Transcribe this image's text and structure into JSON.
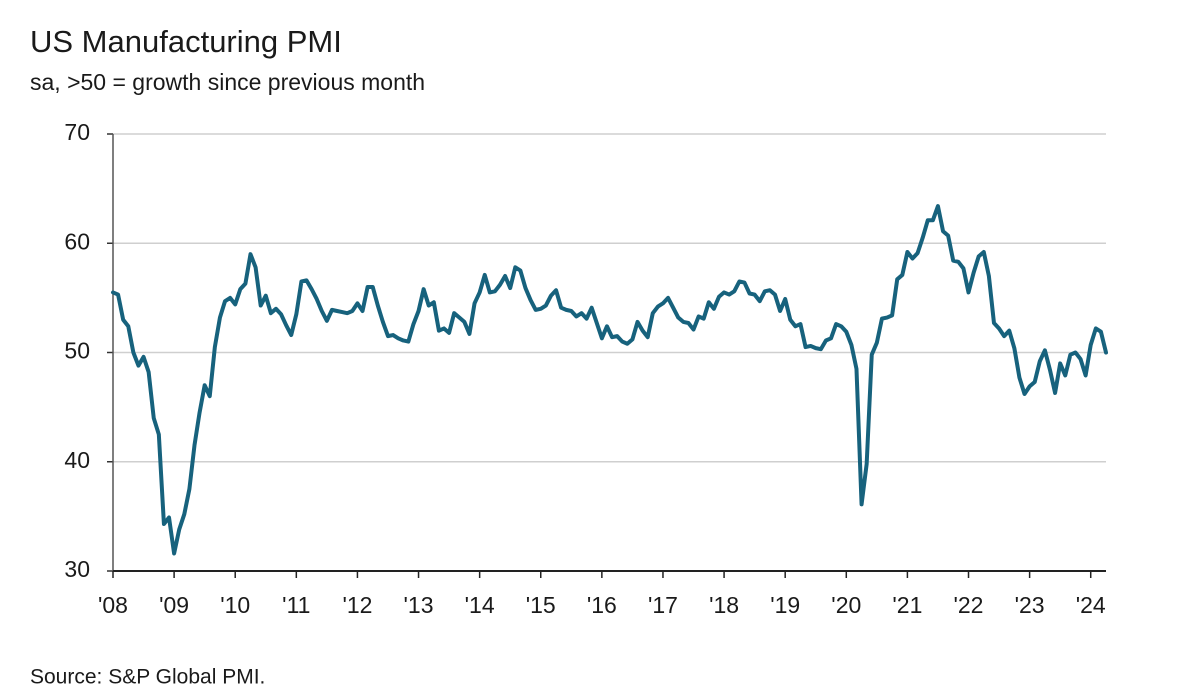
{
  "chart_data": {
    "type": "line",
    "title": "US Manufacturing PMI",
    "subtitle": "sa, >50 = growth since previous month",
    "source": "Source: S&P Global PMI.",
    "color": "#17627d",
    "ylim": [
      30,
      70
    ],
    "yticks": [
      30,
      40,
      50,
      60,
      70
    ],
    "grid": true,
    "categories": [
      "'08",
      null,
      null,
      null,
      null,
      null,
      null,
      null,
      null,
      null,
      null,
      null,
      "'09",
      null,
      null,
      null,
      null,
      null,
      null,
      null,
      null,
      null,
      null,
      null,
      "'10",
      null,
      null,
      null,
      null,
      null,
      null,
      null,
      null,
      null,
      null,
      null,
      "'11",
      null,
      null,
      null,
      null,
      null,
      null,
      null,
      null,
      null,
      null,
      null,
      "'12",
      null,
      null,
      null,
      null,
      null,
      null,
      null,
      null,
      null,
      null,
      null,
      "'13",
      null,
      null,
      null,
      null,
      null,
      null,
      null,
      null,
      null,
      null,
      null,
      "'14",
      null,
      null,
      null,
      null,
      null,
      null,
      null,
      null,
      null,
      null,
      null,
      "'15",
      null,
      null,
      null,
      null,
      null,
      null,
      null,
      null,
      null,
      null,
      null,
      "'16",
      null,
      null,
      null,
      null,
      null,
      null,
      null,
      null,
      null,
      null,
      null,
      "'17",
      null,
      null,
      null,
      null,
      null,
      null,
      null,
      null,
      null,
      null,
      null,
      "'18",
      null,
      null,
      null,
      null,
      null,
      null,
      null,
      null,
      null,
      null,
      null,
      "'19",
      null,
      null,
      null,
      null,
      null,
      null,
      null,
      null,
      null,
      null,
      null,
      "'20",
      null,
      null,
      null,
      null,
      null,
      null,
      null,
      null,
      null,
      null,
      null,
      "'21",
      null,
      null,
      null,
      null,
      null,
      null,
      null,
      null,
      null,
      null,
      null,
      "'22",
      null,
      null,
      null,
      null,
      null,
      null,
      null,
      null,
      null,
      null,
      null,
      "'23",
      null,
      null,
      null,
      null,
      null,
      null,
      null,
      null,
      null,
      null,
      null,
      "'24",
      null,
      null,
      null
    ],
    "values": [
      55.5,
      55.3,
      53.0,
      52.4,
      50.0,
      48.8,
      49.6,
      48.2,
      44.0,
      42.5,
      34.3,
      34.9,
      31.6,
      33.8,
      35.2,
      37.5,
      41.5,
      44.5,
      47.0,
      46.0,
      50.5,
      53.2,
      54.7,
      55.0,
      54.4,
      55.8,
      56.3,
      59.0,
      57.8,
      54.3,
      55.2,
      53.6,
      54.0,
      53.5,
      52.5,
      51.6,
      53.5,
      56.5,
      56.6,
      55.8,
      54.9,
      53.8,
      52.9,
      53.9,
      53.8,
      53.7,
      53.6,
      53.8,
      54.5,
      53.8,
      56.0,
      56.0,
      54.3,
      52.8,
      51.5,
      51.6,
      51.3,
      51.1,
      51.0,
      52.6,
      53.8,
      55.8,
      54.3,
      54.6,
      52.0,
      52.2,
      51.8,
      53.6,
      53.2,
      52.8,
      51.7,
      54.5,
      55.5,
      57.1,
      55.5,
      55.6,
      56.2,
      57.0,
      55.9,
      57.8,
      57.5,
      55.9,
      54.8,
      53.9,
      54.0,
      54.3,
      55.2,
      55.7,
      54.1,
      53.9,
      53.8,
      53.3,
      53.6,
      53.1,
      54.1,
      52.7,
      51.3,
      52.4,
      51.4,
      51.5,
      51.0,
      50.8,
      51.2,
      52.8,
      52.0,
      51.4,
      53.6,
      54.2,
      54.5,
      55.0,
      54.1,
      53.2,
      52.8,
      52.7,
      52.1,
      53.3,
      53.1,
      54.6,
      54.0,
      55.1,
      55.5,
      55.3,
      55.6,
      56.5,
      56.4,
      55.4,
      55.3,
      54.7,
      55.6,
      55.7,
      55.3,
      53.8,
      54.9,
      53.0,
      52.4,
      52.6,
      50.5,
      50.6,
      50.4,
      50.3,
      51.1,
      51.3,
      52.6,
      52.4,
      51.9,
      50.7,
      48.5,
      36.1,
      39.8,
      49.8,
      50.9,
      53.1,
      53.2,
      53.4,
      56.7,
      57.1,
      59.2,
      58.6,
      59.1,
      60.5,
      62.1,
      62.1,
      63.4,
      61.1,
      60.7,
      58.4,
      58.3,
      57.7,
      55.5,
      57.3,
      58.8,
      59.2,
      57.0,
      52.7,
      52.2,
      51.5,
      52.0,
      50.4,
      47.7,
      46.2,
      46.9,
      47.3,
      49.2,
      50.2,
      48.4,
      46.3,
      49.0,
      47.9,
      49.8,
      50.0,
      49.4,
      47.9,
      50.7,
      52.2,
      51.9,
      50.0
    ]
  }
}
